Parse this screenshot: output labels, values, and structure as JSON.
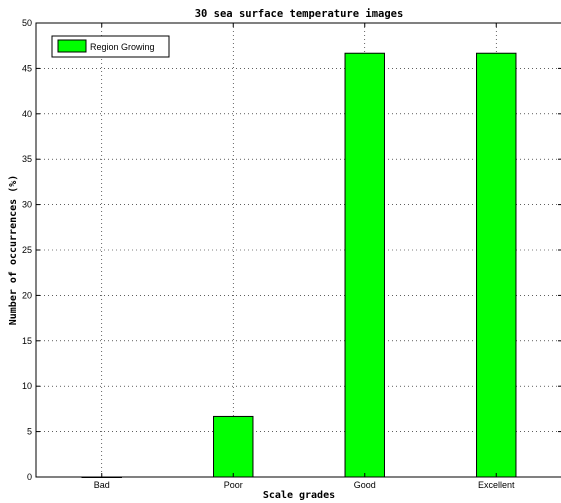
{
  "chart_data": {
    "type": "bar",
    "title": "30 sea surface temperature images",
    "xlabel": "Scale grades",
    "ylabel": "Number of occurrences (%)",
    "categories": [
      "Bad",
      "Poor",
      "Good",
      "Excellent"
    ],
    "series": [
      {
        "name": "Region Growing",
        "values": [
          0,
          6.67,
          46.67,
          46.67
        ],
        "color": "#00ff00"
      }
    ],
    "ylim": [
      0,
      50
    ],
    "yticks": [
      0,
      5,
      10,
      15,
      20,
      25,
      30,
      35,
      40,
      45,
      50
    ],
    "grid": true,
    "legend_position": "top-left"
  }
}
